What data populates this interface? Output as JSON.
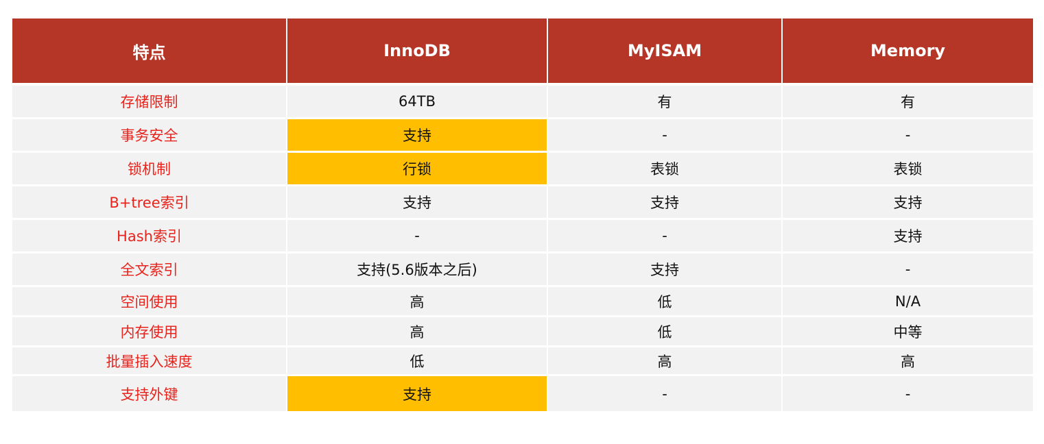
{
  "table": {
    "headers": [
      "特点",
      "InnoDB",
      "MyISAM",
      "Memory"
    ],
    "rows": [
      {
        "feature": "存储限制",
        "innodb": "64TB",
        "myisam": "有",
        "memory": "有",
        "innodb_highlight": false
      },
      {
        "feature": "事务安全",
        "innodb": "支持",
        "myisam": "-",
        "memory": "-",
        "innodb_highlight": true
      },
      {
        "feature": "锁机制",
        "innodb": "行锁",
        "myisam": "表锁",
        "memory": "表锁",
        "innodb_highlight": true
      },
      {
        "feature": "B+tree索引",
        "innodb": "支持",
        "myisam": "支持",
        "memory": "支持",
        "innodb_highlight": false
      },
      {
        "feature": "Hash索引",
        "innodb": "-",
        "myisam": "-",
        "memory": "支持",
        "innodb_highlight": false
      },
      {
        "feature": "全文索引",
        "innodb": "支持(5.6版本之后)",
        "myisam": "支持",
        "memory": "-",
        "innodb_highlight": false
      },
      {
        "feature": "空间使用",
        "innodb": "高",
        "myisam": "低",
        "memory": "N/A",
        "innodb_highlight": false
      },
      {
        "feature": "内存使用",
        "innodb": "高",
        "myisam": "低",
        "memory": "中等",
        "innodb_highlight": false
      },
      {
        "feature": "批量插入速度",
        "innodb": "低",
        "myisam": "高",
        "memory": "高",
        "innodb_highlight": false
      },
      {
        "feature": "支持外键",
        "innodb": "支持",
        "myisam": "-",
        "memory": "-",
        "innodb_highlight": true
      }
    ]
  },
  "colors": {
    "header_bg": "#b53627",
    "header_text": "#ffffff",
    "feature_text": "#e8231c",
    "highlight_bg": "#ffbf00",
    "row_bg": "#f2f2f2"
  }
}
